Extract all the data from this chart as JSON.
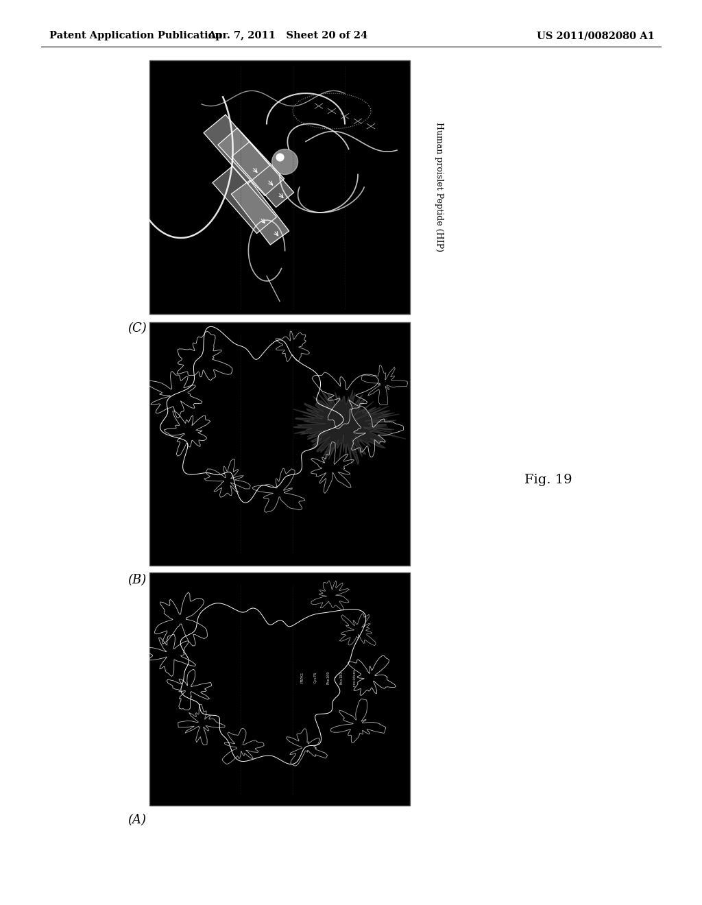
{
  "header_left": "Patent Application Publication",
  "header_middle": "Apr. 7, 2011   Sheet 20 of 24",
  "header_right": "US 2011/0082080 A1",
  "fig_label": "Fig. 19",
  "panel_label_C": "(C)",
  "panel_label_B": "(B)",
  "panel_label_A": "(A)",
  "side_label_C": "Human proislet Peptide (HIP)",
  "background_color": "#ffffff",
  "panel_bg": "#000000",
  "header_fontsize": 11,
  "label_fontsize": 13,
  "fig_label_fontsize": 14
}
